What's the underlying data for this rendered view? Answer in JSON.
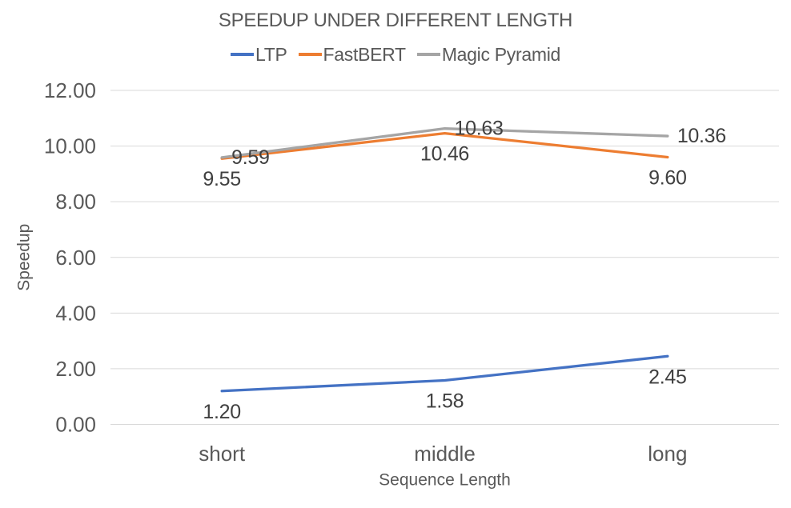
{
  "chart_data": {
    "type": "line",
    "title": "SPEEDUP UNDER DIFFERENT LENGTH",
    "categories": [
      "short",
      "middle",
      "long"
    ],
    "series": [
      {
        "name": "LTP",
        "color": "#4472C4",
        "values": [
          1.2,
          1.58,
          2.45
        ],
        "labels": [
          "1.20",
          "1.58",
          "2.45"
        ],
        "label_position": "below"
      },
      {
        "name": "FastBERT",
        "color": "#ED7D31",
        "values": [
          9.55,
          10.46,
          9.6
        ],
        "labels": [
          "9.55",
          "10.46",
          "9.60"
        ],
        "label_position": "below"
      },
      {
        "name": "Magic Pyramid",
        "color": "#A5A5A5",
        "values": [
          9.59,
          10.63,
          10.36
        ],
        "labels": [
          "9.59",
          "10.63",
          "10.36"
        ],
        "label_position": "right"
      }
    ],
    "xlabel": "Sequence Length",
    "ylabel": "Speedup",
    "ylim": [
      0,
      12
    ],
    "ytick_step": 2,
    "ytick_labels": [
      "0.00",
      "2.00",
      "4.00",
      "6.00",
      "8.00",
      "10.00",
      "12.00"
    ],
    "grid": true,
    "legend_position": "top",
    "colors": {
      "axis_text": "#595959",
      "data_label_text": "#404040",
      "gridline": "#D9D9D9",
      "background": "#FFFFFF"
    }
  }
}
